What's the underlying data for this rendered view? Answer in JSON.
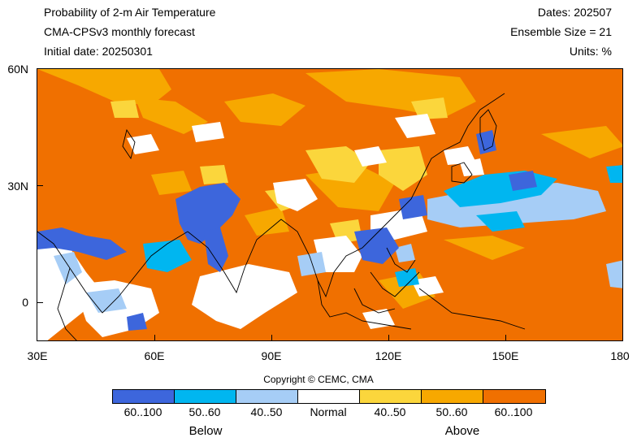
{
  "header": {
    "title": "Probability of 2-m Air Temperature",
    "model": "CMA-CPSv3 monthly forecast",
    "initial": "Initial date: 20250301",
    "dates": "Dates: 202507",
    "ensemble": "Ensemble Size = 21",
    "units": "Units: %"
  },
  "axes": {
    "lat_labels": [
      "60N",
      "30N",
      "0"
    ],
    "lon_labels": [
      "30E",
      "60E",
      "90E",
      "120E",
      "150E",
      "180"
    ]
  },
  "map_extent": {
    "lon_range": [
      30,
      180
    ],
    "lat_range": [
      -10,
      60
    ]
  },
  "colors": {
    "below_60_100": "#3d66dc",
    "below_50_60": "#00b6f0",
    "below_40_50": "#a6cdf6",
    "normal": "#ffffff",
    "above_40_50": "#fbd63c",
    "above_50_60": "#f7a800",
    "above_60_100": "#f07000"
  },
  "legend": {
    "items": [
      {
        "label": "60..100",
        "color": "#3d66dc"
      },
      {
        "label": "50..60",
        "color": "#00b6f0"
      },
      {
        "label": "40..50",
        "color": "#a6cdf6"
      },
      {
        "label": "Normal",
        "color": "#ffffff"
      },
      {
        "label": "40..50",
        "color": "#fbd63c"
      },
      {
        "label": "50..60",
        "color": "#f7a800"
      },
      {
        "label": "60..100",
        "color": "#f07000"
      }
    ],
    "below_label": "Below",
    "above_label": "Above"
  },
  "copyright": "Copyright © CEMC, CMA"
}
